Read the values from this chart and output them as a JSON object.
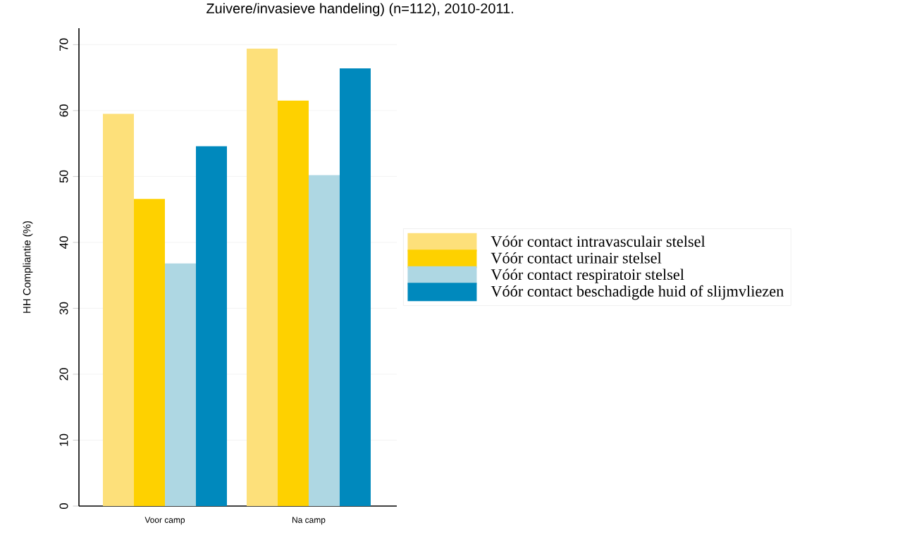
{
  "chart_data": {
    "type": "bar",
    "annotations": [
      "Zuivere/invasieve handeling) (n=112), 2010-2011."
    ],
    "ylabel": "HH Compliantie (%)",
    "categories": [
      "Voor camp",
      "Na camp"
    ],
    "series": [
      {
        "name": "Vóór contact intravasculair stelsel",
        "color": "#fde07a",
        "values": [
          59.5,
          69.4
        ]
      },
      {
        "name": "Vóór contact urinair stelsel",
        "color": "#fed100",
        "values": [
          46.6,
          61.5
        ]
      },
      {
        "name": "Vóór contact respiratoir stelsel",
        "color": "#aed7e3",
        "values": [
          36.8,
          50.2
        ]
      },
      {
        "name": "Vóór contact beschadigde huid of slijmvliezen",
        "color": "#0089bd",
        "values": [
          54.6,
          66.4
        ]
      }
    ],
    "ylim": [
      0,
      72.5
    ],
    "yticks": [
      0,
      10,
      20,
      30,
      40,
      50,
      60,
      70
    ],
    "grid": "y",
    "legend": "right"
  }
}
